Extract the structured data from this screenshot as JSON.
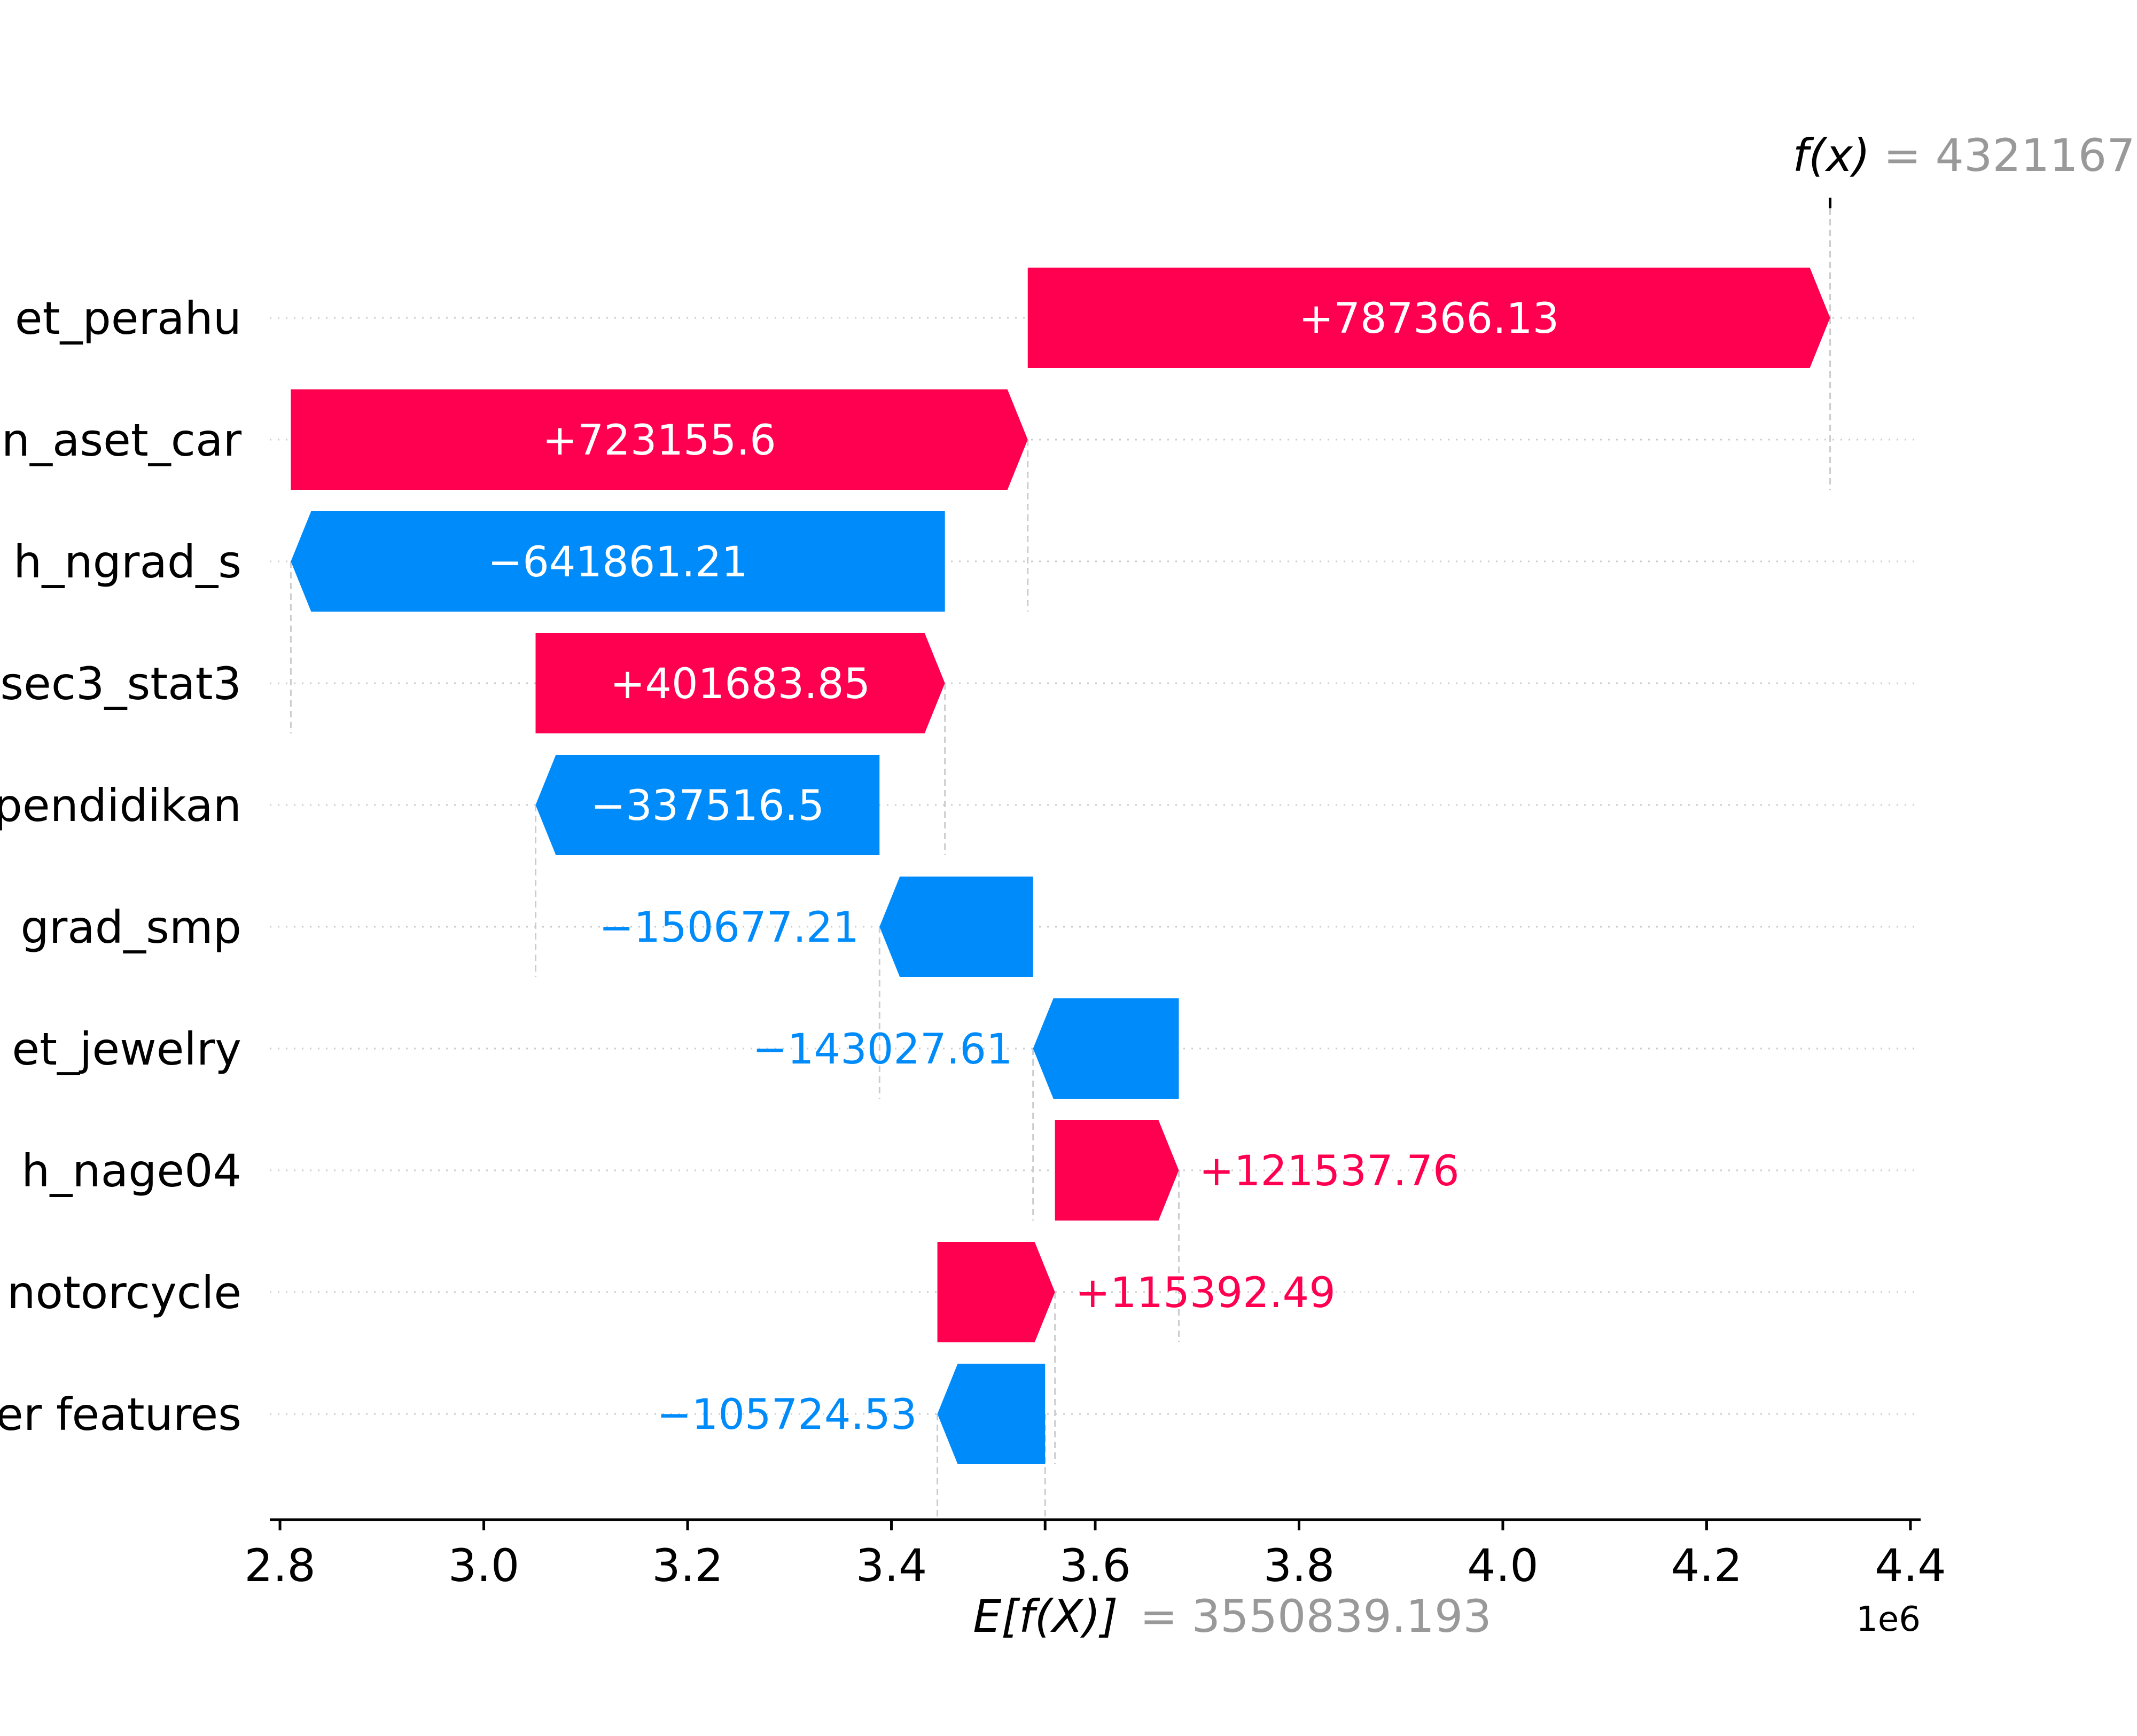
{
  "chart_data": {
    "type": "waterfall",
    "features": [
      {
        "label": "et_perahu",
        "start": 3533801.7,
        "value": 787366.13,
        "text": "+787366.13"
      },
      {
        "label": "n_aset_car",
        "start": 2810646.1,
        "value": 723155.6,
        "text": "+723155.6"
      },
      {
        "label": "h_ngrad_s",
        "start": 3452507.31,
        "value": -641861.21,
        "text": "−641861.21"
      },
      {
        "label": "sec3_stat3",
        "start": 3050823.46,
        "value": 401683.85,
        "text": "+401683.85"
      },
      {
        "label": "pendidikan",
        "start": 3388339.96,
        "value": -337516.5,
        "text": "−337516.5"
      },
      {
        "label": "grad_smp",
        "start": 3539017.17,
        "value": -150677.21,
        "text": "−150677.21"
      },
      {
        "label": "et_jewelry",
        "start": 3682044.78,
        "value": -143027.61,
        "text": "−143027.61"
      },
      {
        "label": "h_nage04",
        "start": 3560507.02,
        "value": 121537.76,
        "text": "+121537.76"
      },
      {
        "label": "notorcycle",
        "start": 3445114.53,
        "value": 115392.49,
        "text": "+115392.49"
      },
      {
        "label": "er features",
        "start": 3550839.06,
        "value": -105724.53,
        "text": "−105724.53"
      }
    ],
    "base_value": 3550839.193,
    "base_label": "E[f(X)]",
    "base_text": "= 3550839.193",
    "output_value": 4321167,
    "output_label": "f(x)",
    "output_text": "= 4321167.",
    "xticks": [
      "2.8",
      "3.0",
      "3.2",
      "3.4",
      "3.6",
      "3.8",
      "4.0",
      "4.2",
      "4.4"
    ],
    "xtick_values": [
      2800000,
      3000000,
      3200000,
      3400000,
      3600000,
      3800000,
      4000000,
      4200000,
      4400000
    ],
    "x_exponent_label": "1e6",
    "xlim": [
      2790000,
      4410000
    ],
    "colors": {
      "positive": "#ff0051",
      "negative": "#008bfb",
      "axis": "#000000",
      "grid": "#cccccc",
      "muted": "#999999"
    }
  }
}
